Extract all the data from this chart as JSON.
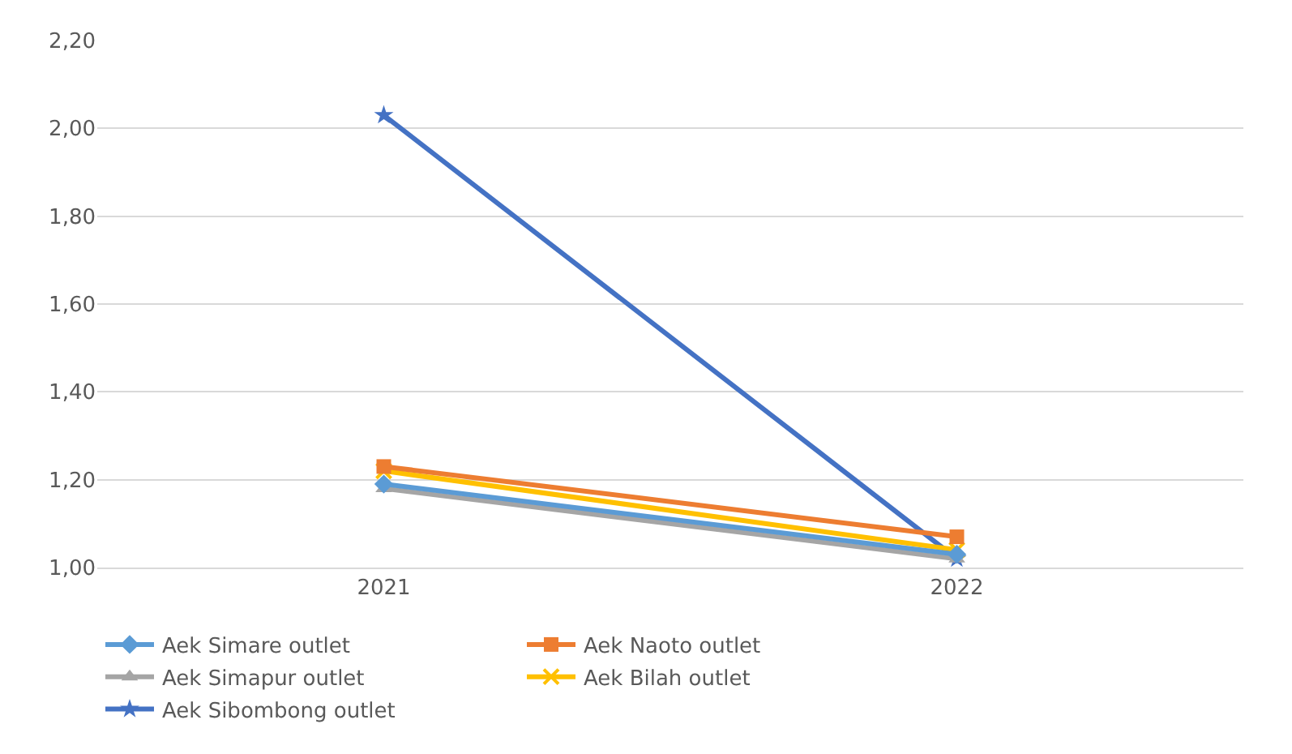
{
  "chart_data": {
    "type": "line",
    "categories": [
      "2021",
      "2022"
    ],
    "ylim": [
      1.0,
      2.2
    ],
    "yticks": [
      {
        "value": 1.0,
        "label": "1,00"
      },
      {
        "value": 1.2,
        "label": "1,20"
      },
      {
        "value": 1.4,
        "label": "1,40"
      },
      {
        "value": 1.6,
        "label": "1,60"
      },
      {
        "value": 1.8,
        "label": "1,80"
      },
      {
        "value": 2.0,
        "label": "2,00"
      },
      {
        "value": 2.2,
        "label": "2,20"
      }
    ],
    "grid": "y",
    "legend": "bottom",
    "series": [
      {
        "name": "Aek Simare outlet",
        "color": "#5b9bd5",
        "marker": "diamond",
        "values": [
          1.19,
          1.03
        ]
      },
      {
        "name": "Aek Naoto outlet",
        "color": "#ed7d31",
        "marker": "square",
        "values": [
          1.23,
          1.07
        ]
      },
      {
        "name": "Aek Simapur outlet",
        "color": "#a5a5a5",
        "marker": "triangle",
        "values": [
          1.18,
          1.02
        ]
      },
      {
        "name": "Aek Bilah outlet",
        "color": "#ffc000",
        "marker": "cross",
        "values": [
          1.22,
          1.04
        ]
      },
      {
        "name": "Aek Sibombong outlet",
        "color": "#4472c4",
        "marker": "star",
        "values": [
          2.03,
          1.02
        ]
      }
    ]
  }
}
